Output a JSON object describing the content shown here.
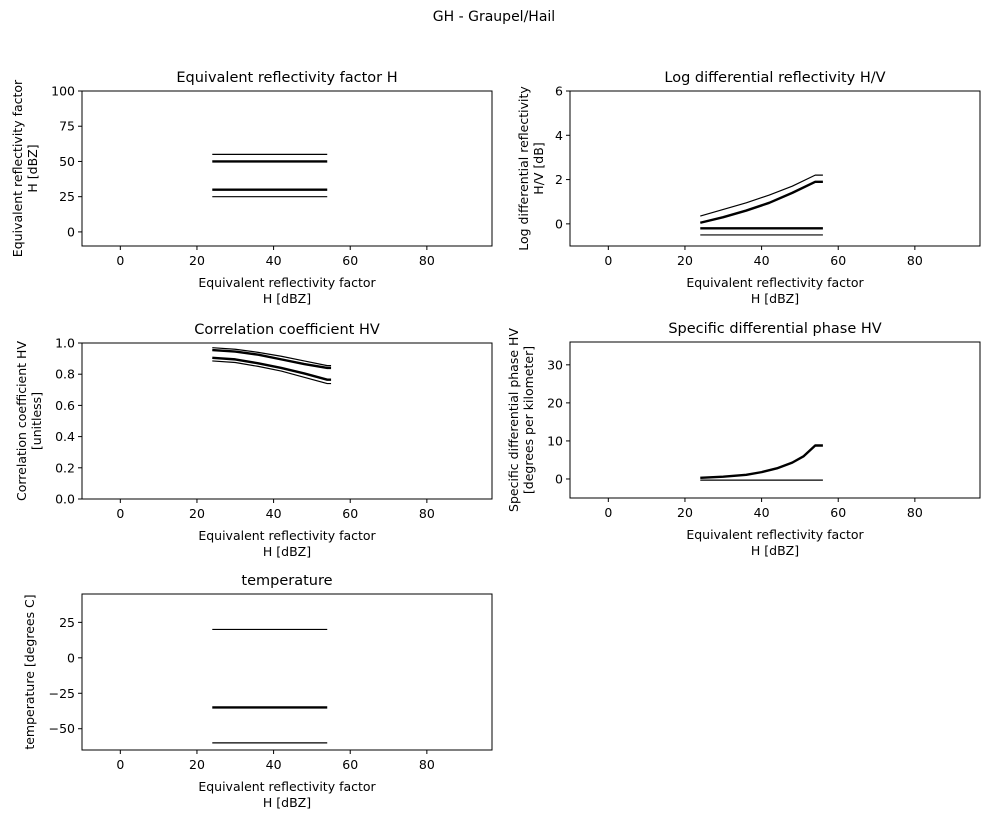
{
  "figure": {
    "suptitle": "GH - Graupel/Hail"
  },
  "chart_data": [
    {
      "id": "zh",
      "type": "line",
      "title": "Equivalent reflectivity factor H",
      "xlabel": [
        "Equivalent reflectivity factor",
        "H [dBZ]"
      ],
      "ylabel": [
        "Equivalent reflectivity factor",
        "H [dBZ]"
      ],
      "xlim": [
        -10,
        97
      ],
      "ylim": [
        -10,
        100
      ],
      "xticks": [
        0,
        20,
        40,
        60,
        80
      ],
      "yticks": [
        0,
        25,
        50,
        75,
        100
      ],
      "series": [
        {
          "x": [
            24,
            54
          ],
          "y": [
            55,
            55
          ],
          "width": 1.2
        },
        {
          "x": [
            24,
            54
          ],
          "y": [
            50,
            50
          ],
          "width": 2.4
        },
        {
          "x": [
            24,
            54
          ],
          "y": [
            30,
            30
          ],
          "width": 2.4
        },
        {
          "x": [
            24,
            54
          ],
          "y": [
            25,
            25
          ],
          "width": 1.2
        }
      ]
    },
    {
      "id": "zdr",
      "type": "line",
      "title": "Log differential reflectivity H/V",
      "xlabel": [
        "Equivalent reflectivity factor",
        "H [dBZ]"
      ],
      "ylabel": [
        "Log differential reflectivity",
        "H/V [dB]"
      ],
      "xlim": [
        -10,
        97
      ],
      "ylim": [
        -1,
        6
      ],
      "xticks": [
        0,
        20,
        40,
        60,
        80
      ],
      "yticks": [
        0,
        2,
        4,
        6
      ],
      "series": [
        {
          "x": [
            24,
            30,
            36,
            42,
            48,
            54,
            56
          ],
          "y": [
            0.35,
            0.65,
            0.95,
            1.3,
            1.7,
            2.2,
            2.2
          ],
          "width": 1.2
        },
        {
          "x": [
            24,
            30,
            36,
            42,
            48,
            54,
            56
          ],
          "y": [
            0.05,
            0.3,
            0.6,
            0.95,
            1.4,
            1.9,
            1.9
          ],
          "width": 2.4
        },
        {
          "x": [
            24,
            56
          ],
          "y": [
            -0.2,
            -0.2
          ],
          "width": 2.4
        },
        {
          "x": [
            24,
            56
          ],
          "y": [
            -0.5,
            -0.5
          ],
          "width": 1.2
        }
      ]
    },
    {
      "id": "rhohv",
      "type": "line",
      "title": "Correlation coefficient HV",
      "xlabel": [
        "Equivalent reflectivity factor",
        "H [dBZ]"
      ],
      "ylabel": [
        "Correlation coefficient HV",
        "[unitless]"
      ],
      "xlim": [
        -10,
        97
      ],
      "ylim": [
        0,
        1
      ],
      "xticks": [
        0,
        20,
        40,
        60,
        80
      ],
      "yticks": [
        0.0,
        0.2,
        0.4,
        0.6,
        0.8,
        1.0
      ],
      "series": [
        {
          "x": [
            24,
            30,
            36,
            42,
            48,
            54,
            55
          ],
          "y": [
            0.97,
            0.96,
            0.94,
            0.915,
            0.885,
            0.855,
            0.855
          ],
          "width": 1.2
        },
        {
          "x": [
            24,
            30,
            36,
            42,
            48,
            54,
            55
          ],
          "y": [
            0.955,
            0.945,
            0.925,
            0.895,
            0.865,
            0.84,
            0.84
          ],
          "width": 2.4
        },
        {
          "x": [
            24,
            30,
            36,
            42,
            48,
            54,
            55
          ],
          "y": [
            0.905,
            0.895,
            0.87,
            0.84,
            0.805,
            0.765,
            0.765
          ],
          "width": 2.4
        },
        {
          "x": [
            24,
            30,
            36,
            42,
            48,
            54,
            55
          ],
          "y": [
            0.885,
            0.875,
            0.85,
            0.82,
            0.78,
            0.74,
            0.74
          ],
          "width": 1.2
        }
      ]
    },
    {
      "id": "kdp",
      "type": "line",
      "title": "Specific differential phase HV",
      "xlabel": [
        "Equivalent reflectivity factor",
        "H [dBZ]"
      ],
      "ylabel": [
        "Specific differential phase HV",
        "[degrees per kilometer]"
      ],
      "xlim": [
        -10,
        97
      ],
      "ylim": [
        -5,
        36
      ],
      "xticks": [
        0,
        20,
        40,
        60,
        80
      ],
      "yticks": [
        0,
        10,
        20,
        30
      ],
      "series": [
        {
          "x": [
            24,
            30,
            36,
            40,
            44,
            48,
            51,
            54,
            56
          ],
          "y": [
            0.3,
            0.6,
            1.1,
            1.8,
            2.8,
            4.3,
            6.0,
            8.8,
            8.8
          ],
          "width": 2.4
        },
        {
          "x": [
            24,
            56
          ],
          "y": [
            -0.3,
            -0.3
          ],
          "width": 1.2
        }
      ]
    },
    {
      "id": "temp",
      "type": "line",
      "title": "temperature",
      "xlabel": [
        "Equivalent reflectivity factor",
        "H [dBZ]"
      ],
      "ylabel": [
        "temperature [degrees C]"
      ],
      "xlim": [
        -10,
        97
      ],
      "ylim": [
        -65,
        45
      ],
      "xticks": [
        0,
        20,
        40,
        60,
        80
      ],
      "yticks": [
        -50,
        -25,
        0,
        25
      ],
      "series": [
        {
          "x": [
            24,
            54
          ],
          "y": [
            20,
            20
          ],
          "width": 1.2
        },
        {
          "x": [
            24,
            54
          ],
          "y": [
            -35,
            -35
          ],
          "width": 2.4
        },
        {
          "x": [
            24,
            54
          ],
          "y": [
            -60,
            -60
          ],
          "width": 1.2
        }
      ]
    }
  ]
}
